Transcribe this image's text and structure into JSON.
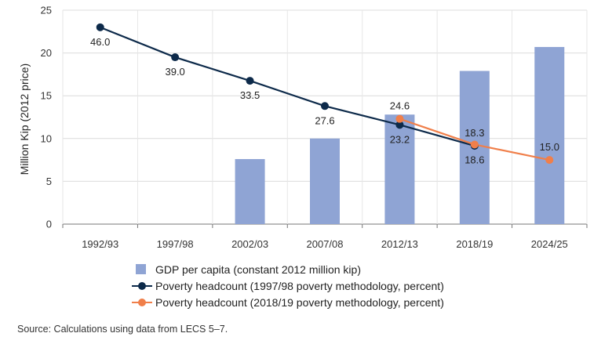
{
  "chart_data": {
    "type": "bar+line",
    "ylabel": "Million Kip (2012 price)",
    "ylim": [
      0,
      25
    ],
    "yticks": [
      0,
      5,
      10,
      15,
      20,
      25
    ],
    "categories": [
      "1992/93",
      "1997/98",
      "2002/03",
      "2007/08",
      "2012/13",
      "2018/19",
      "2024/25"
    ],
    "grid": true,
    "legend_position": "bottom",
    "bars": {
      "name": "GDP per capita (constant 2012 million kip)",
      "color": "#8fa4d4",
      "values": [
        null,
        null,
        7.6,
        10.0,
        12.8,
        17.9,
        20.7
      ]
    },
    "series": [
      {
        "name": "Poverty headcount (1997/98 poverty methodology, percent)",
        "color": "#0d2a4a",
        "values": [
          23.0,
          19.5,
          16.75,
          13.8,
          11.6,
          9.15,
          null
        ],
        "labels": [
          "46.0",
          "39.0",
          "33.5",
          "27.6",
          "23.2",
          "18.3",
          null
        ]
      },
      {
        "name": "Poverty headcount (2018/19 poverty methodology, percent)",
        "color": "#f07f4a",
        "values": [
          null,
          null,
          null,
          null,
          12.3,
          9.3,
          7.5
        ],
        "labels": [
          null,
          null,
          null,
          null,
          "24.6",
          "18.6",
          "15.0"
        ]
      }
    ]
  },
  "source_note": "Source: Calculations using data from LECS 5–7."
}
